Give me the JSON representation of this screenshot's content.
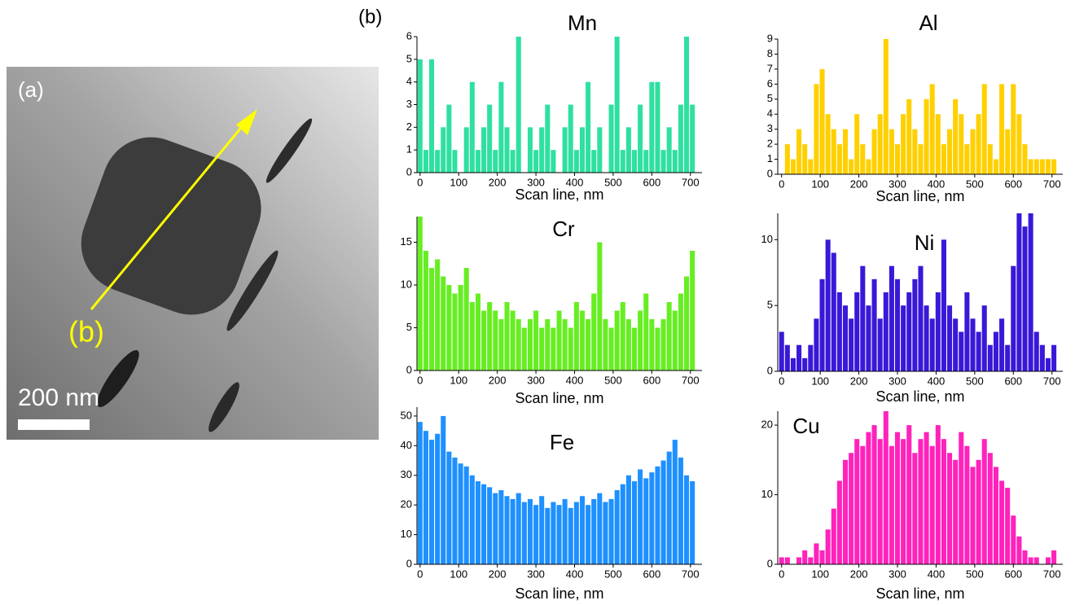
{
  "figure": {
    "panel_a": "(a)",
    "panel_b": "(b)",
    "image_marker": "(b)",
    "scale_bar": "200 nm"
  },
  "chart_data": [
    {
      "type": "bar",
      "title": "Mn",
      "xlabel": "Scan line, nm",
      "color": "#2fe0a0",
      "x": [
        0,
        15,
        30,
        45,
        60,
        75,
        90,
        105,
        120,
        135,
        150,
        165,
        180,
        195,
        210,
        225,
        240,
        255,
        270,
        285,
        300,
        315,
        330,
        345,
        360,
        375,
        390,
        405,
        420,
        435,
        450,
        465,
        480,
        495,
        510,
        525,
        540,
        555,
        570,
        585,
        600,
        615,
        630,
        645,
        660,
        675,
        690,
        705
      ],
      "values": [
        5,
        1,
        5,
        1,
        2,
        3,
        1,
        0,
        2,
        4,
        1,
        2,
        3,
        1,
        4,
        2,
        1,
        6,
        0,
        2,
        1,
        2,
        3,
        1,
        0,
        2,
        3,
        1,
        2,
        4,
        1,
        2,
        0,
        3,
        6,
        1,
        2,
        1,
        3,
        1,
        4,
        4,
        1,
        2,
        1,
        3,
        6,
        3
      ],
      "xlim": [
        -8,
        730
      ],
      "ylim": [
        0,
        6
      ],
      "xticks": [
        0,
        100,
        200,
        300,
        400,
        500,
        600,
        700
      ],
      "yticks": [
        0,
        1,
        2,
        3,
        4,
        5,
        6
      ]
    },
    {
      "type": "bar",
      "title": "Al",
      "xlabel": "Scan line, nm",
      "color": "#ffd000",
      "x": [
        0,
        15,
        30,
        45,
        60,
        75,
        90,
        105,
        120,
        135,
        150,
        165,
        180,
        195,
        210,
        225,
        240,
        255,
        270,
        285,
        300,
        315,
        330,
        345,
        360,
        375,
        390,
        405,
        420,
        435,
        450,
        465,
        480,
        495,
        510,
        525,
        540,
        555,
        570,
        585,
        600,
        615,
        630,
        645,
        660,
        675,
        690,
        705
      ],
      "values": [
        0,
        2,
        1,
        3,
        2,
        1,
        6,
        7,
        4,
        3,
        2,
        3,
        1,
        4,
        2,
        1,
        3,
        4,
        9,
        3,
        2,
        4,
        5,
        3,
        2,
        5,
        6,
        4,
        2,
        3,
        5,
        4,
        2,
        3,
        4,
        6,
        2,
        1,
        6,
        3,
        6,
        4,
        2,
        1,
        1,
        1,
        1,
        1
      ],
      "xlim": [
        -10,
        728
      ],
      "ylim": [
        0,
        9
      ],
      "xticks": [
        0,
        100,
        200,
        300,
        400,
        500,
        600,
        700
      ],
      "yticks": [
        0,
        1,
        2,
        3,
        4,
        5,
        6,
        7,
        8,
        9
      ]
    },
    {
      "type": "bar",
      "title": "Cr",
      "xlabel": "Scan line, nm",
      "color": "#66ee22",
      "x": [
        0,
        15,
        30,
        45,
        60,
        75,
        90,
        105,
        120,
        135,
        150,
        165,
        180,
        195,
        210,
        225,
        240,
        255,
        270,
        285,
        300,
        315,
        330,
        345,
        360,
        375,
        390,
        405,
        420,
        435,
        450,
        465,
        480,
        495,
        510,
        525,
        540,
        555,
        570,
        585,
        600,
        615,
        630,
        645,
        660,
        675,
        690,
        705
      ],
      "values": [
        18,
        14,
        12,
        13,
        11,
        10,
        9,
        10,
        12,
        8,
        9,
        7,
        8,
        7,
        6,
        8,
        7,
        6,
        5,
        6,
        7,
        5,
        6,
        5,
        7,
        6,
        5,
        8,
        7,
        6,
        9,
        15,
        6,
        5,
        7,
        8,
        6,
        5,
        7,
        9,
        6,
        5,
        6,
        8,
        7,
        9,
        11,
        14
      ],
      "xlim": [
        -8,
        730
      ],
      "ylim": [
        0,
        18
      ],
      "xticks": [
        0,
        100,
        200,
        300,
        400,
        500,
        600,
        700
      ],
      "yticks": [
        0,
        5,
        10,
        15
      ]
    },
    {
      "type": "bar",
      "title": "Ni",
      "xlabel": "Scan line, nm",
      "color": "#3a18d8",
      "x": [
        0,
        15,
        30,
        45,
        60,
        75,
        90,
        105,
        120,
        135,
        150,
        165,
        180,
        195,
        210,
        225,
        240,
        255,
        270,
        285,
        300,
        315,
        330,
        345,
        360,
        375,
        390,
        405,
        420,
        435,
        450,
        465,
        480,
        495,
        510,
        525,
        540,
        555,
        570,
        585,
        600,
        615,
        630,
        645,
        660,
        675,
        690,
        705
      ],
      "values": [
        3,
        2,
        1,
        2,
        1,
        2,
        4,
        7,
        10,
        9,
        6,
        5,
        4,
        6,
        8,
        5,
        7,
        4,
        6,
        8,
        7,
        5,
        6,
        7,
        8,
        5,
        4,
        6,
        10,
        5,
        4,
        3,
        6,
        4,
        3,
        5,
        2,
        3,
        4,
        2,
        8,
        12,
        11,
        12,
        3,
        2,
        1,
        2
      ],
      "xlim": [
        -10,
        728
      ],
      "ylim": [
        0,
        12
      ],
      "xticks": [
        0,
        100,
        200,
        300,
        400,
        500,
        600,
        700
      ],
      "yticks": [
        0,
        5,
        10
      ]
    },
    {
      "type": "bar",
      "title": "Fe",
      "xlabel": "Scan line, nm",
      "color": "#1e90ff",
      "x": [
        0,
        15,
        30,
        45,
        60,
        75,
        90,
        105,
        120,
        135,
        150,
        165,
        180,
        195,
        210,
        225,
        240,
        255,
        270,
        285,
        300,
        315,
        330,
        345,
        360,
        375,
        390,
        405,
        420,
        435,
        450,
        465,
        480,
        495,
        510,
        525,
        540,
        555,
        570,
        585,
        600,
        615,
        630,
        645,
        660,
        675,
        690,
        705
      ],
      "values": [
        48,
        45,
        42,
        44,
        50,
        38,
        36,
        34,
        33,
        30,
        28,
        27,
        26,
        24,
        25,
        23,
        22,
        24,
        21,
        22,
        20,
        23,
        19,
        21,
        20,
        22,
        19,
        21,
        23,
        20,
        22,
        24,
        21,
        22,
        25,
        27,
        30,
        28,
        32,
        29,
        31,
        33,
        35,
        38,
        42,
        36,
        30,
        28
      ],
      "xlim": [
        -8,
        730
      ],
      "ylim": [
        0,
        53
      ],
      "xticks": [
        0,
        100,
        200,
        300,
        400,
        500,
        600,
        700
      ],
      "yticks": [
        0,
        10,
        20,
        30,
        40,
        50
      ]
    },
    {
      "type": "bar",
      "title": "Cu",
      "xlabel": "Scan line, nm",
      "color": "#ff22bb",
      "x": [
        0,
        15,
        30,
        45,
        60,
        75,
        90,
        105,
        120,
        135,
        150,
        165,
        180,
        195,
        210,
        225,
        240,
        255,
        270,
        285,
        300,
        315,
        330,
        345,
        360,
        375,
        390,
        405,
        420,
        435,
        450,
        465,
        480,
        495,
        510,
        525,
        540,
        555,
        570,
        585,
        600,
        615,
        630,
        645,
        660,
        675,
        690,
        705
      ],
      "values": [
        1,
        1,
        0,
        1,
        2,
        1,
        3,
        2,
        5,
        8,
        12,
        15,
        16,
        18,
        17,
        19,
        20,
        18,
        22,
        17,
        19,
        18,
        20,
        16,
        18,
        19,
        17,
        20,
        18,
        16,
        15,
        19,
        17,
        14,
        15,
        18,
        16,
        14,
        12,
        11,
        7,
        4,
        2,
        1,
        1,
        0,
        1,
        2
      ],
      "xlim": [
        -10,
        728
      ],
      "ylim": [
        0,
        22
      ],
      "xticks": [
        0,
        100,
        200,
        300,
        400,
        500,
        600,
        700
      ],
      "yticks": [
        0,
        10,
        20
      ]
    }
  ]
}
